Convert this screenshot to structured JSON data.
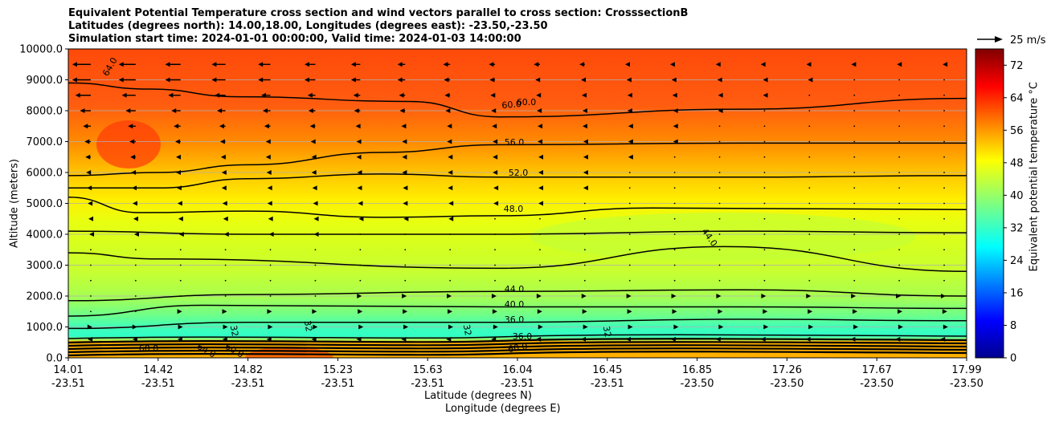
{
  "title": {
    "line1": "Equivalent Potential Temperature cross section and wind vectors parallel to cross section: CrosssectionB",
    "line2": "Latitudes (degrees north): 14.00,18.00, Longitudes (degrees east): -23.50,-23.50",
    "line3": "Simulation start time: 2024-01-01 00:00:00, Valid time: 2024-01-03 14:00:00"
  },
  "axis": {
    "ylabel": "Altitude (meters)",
    "xlabel_lat": "Latitude (degrees N)",
    "xlabel_lon": "Longitude (degrees E)",
    "colorbar_label": "Equivalent potential temperature $^\\circ$C",
    "colorbar_label_display": "Equivalent potential temperature °C",
    "quiver_key": "25 m/s"
  },
  "chart_data": {
    "type": "contour",
    "ylim": [
      0,
      10000
    ],
    "yticks": [
      "0.0",
      "1000.0",
      "2000.0",
      "3000.0",
      "4000.0",
      "5000.0",
      "6000.0",
      "7000.0",
      "8000.0",
      "9000.0",
      "10000.0"
    ],
    "ytick_values": [
      0,
      1000,
      2000,
      3000,
      4000,
      5000,
      6000,
      7000,
      8000,
      9000,
      10000
    ],
    "xticks": [
      {
        "lat": "14.01",
        "lon": "-23.51"
      },
      {
        "lat": "14.42",
        "lon": "-23.51"
      },
      {
        "lat": "14.82",
        "lon": "-23.51"
      },
      {
        "lat": "15.23",
        "lon": "-23.51"
      },
      {
        "lat": "15.63",
        "lon": "-23.51"
      },
      {
        "lat": "16.04",
        "lon": "-23.51"
      },
      {
        "lat": "16.45",
        "lon": "-23.51"
      },
      {
        "lat": "16.85",
        "lon": "-23.50"
      },
      {
        "lat": "17.26",
        "lon": "-23.50"
      },
      {
        "lat": "17.67",
        "lon": "-23.50"
      },
      {
        "lat": "17.99",
        "lon": "-23.50"
      }
    ],
    "colorbar": {
      "min": 0,
      "max": 76,
      "ticks": [
        0,
        8,
        16,
        24,
        32,
        40,
        48,
        56,
        64,
        72
      ]
    },
    "contour_labels": [
      "64.0",
      "60.0",
      "60.0",
      "56.0",
      "52.0",
      "48.0",
      "44.0",
      "44.0",
      "40.0",
      "36.0",
      "32",
      "32",
      "32",
      "32",
      "36.0",
      "60.0",
      "64.0",
      "60.0",
      "60.0"
    ],
    "contour_lines": [
      {
        "level": 60,
        "points": [
          [
            0,
            8900
          ],
          [
            0.09,
            8700
          ],
          [
            0.19,
            8450
          ],
          [
            0.38,
            8300
          ],
          [
            0.48,
            7800
          ],
          [
            0.75,
            8050
          ],
          [
            1.0,
            8400
          ]
        ]
      },
      {
        "level": 56,
        "points": [
          [
            0,
            5900
          ],
          [
            0.1,
            6000
          ],
          [
            0.2,
            6250
          ],
          [
            0.35,
            6650
          ],
          [
            0.48,
            6900
          ],
          [
            0.75,
            6950
          ],
          [
            1.0,
            6950
          ]
        ]
      },
      {
        "level": 52,
        "points": [
          [
            0,
            5500
          ],
          [
            0.1,
            5500
          ],
          [
            0.2,
            5800
          ],
          [
            0.35,
            5950
          ],
          [
            0.48,
            5850
          ],
          [
            0.75,
            5850
          ],
          [
            1.0,
            5900
          ]
        ]
      },
      {
        "level": 48,
        "points": [
          [
            0,
            5200
          ],
          [
            0.08,
            4700
          ],
          [
            0.2,
            4750
          ],
          [
            0.35,
            4550
          ],
          [
            0.48,
            4600
          ],
          [
            0.65,
            4850
          ],
          [
            1.0,
            4800
          ]
        ]
      },
      {
        "level": 44,
        "points": [
          [
            0,
            4100
          ],
          [
            0.2,
            4000
          ],
          [
            0.48,
            4000
          ],
          [
            0.75,
            4100
          ],
          [
            1.0,
            4050
          ]
        ]
      },
      {
        "level": 44,
        "points": [
          [
            0,
            3400
          ],
          [
            0.1,
            3200
          ],
          [
            0.48,
            2900
          ],
          [
            0.73,
            3600
          ],
          [
            1.0,
            2800
          ]
        ]
      },
      {
        "level": 44,
        "points": [
          [
            0,
            1850
          ],
          [
            0.2,
            2050
          ],
          [
            0.48,
            2150
          ],
          [
            0.75,
            2200
          ],
          [
            1.0,
            2000
          ]
        ]
      },
      {
        "level": 40,
        "points": [
          [
            0,
            1350
          ],
          [
            0.15,
            1700
          ],
          [
            0.48,
            1650
          ],
          [
            0.75,
            1650
          ],
          [
            1.0,
            1600
          ]
        ]
      },
      {
        "level": 36,
        "points": [
          [
            0,
            950
          ],
          [
            0.2,
            1150
          ],
          [
            0.48,
            1150
          ],
          [
            0.75,
            1250
          ],
          [
            1.0,
            1200
          ]
        ]
      }
    ],
    "wind": {
      "units": "m/s",
      "reference_speed": 25,
      "rows": [
        {
          "altitude": 9500,
          "u": [
            -24,
            -22,
            -20,
            -18,
            -16,
            -14,
            -12,
            -10,
            -9,
            -8,
            -8,
            -7,
            -6,
            -6,
            -5,
            -5,
            -4,
            -4,
            -3,
            -2
          ]
        },
        {
          "altitude": 9000,
          "u": [
            -24,
            -22,
            -20,
            -18,
            -16,
            -14,
            -12,
            -10,
            -8,
            -7,
            -6,
            -5,
            -4,
            -4,
            -3,
            -2,
            -2,
            -1,
            -1,
            -1
          ]
        },
        {
          "altitude": 8500,
          "u": [
            -20,
            -18,
            -16,
            -14,
            -12,
            -10,
            -9,
            -8,
            -7,
            -6,
            -5,
            -4,
            -3,
            -3,
            -2,
            -2,
            -1,
            -1,
            -1,
            -1
          ]
        },
        {
          "altitude": 8000,
          "u": [
            -14,
            -13,
            -12,
            -11,
            -10,
            -9,
            -8,
            -7,
            -6,
            -5,
            -4,
            -3,
            -3,
            -2,
            -2,
            -1,
            -1,
            -1,
            -1,
            -1
          ]
        },
        {
          "altitude": 7500,
          "u": [
            -10,
            -10,
            -9,
            -8,
            -8,
            -7,
            -6,
            -5,
            -4,
            -4,
            -3,
            -3,
            -2,
            -2,
            -1,
            -1,
            -1,
            -1,
            -1,
            -1
          ]
        },
        {
          "altitude": 7000,
          "u": [
            -8,
            -8,
            -7,
            -7,
            -6,
            -6,
            -5,
            -4,
            -4,
            -3,
            -3,
            -2,
            -2,
            -2,
            -1,
            -1,
            -1,
            -1,
            -1,
            -1
          ]
        },
        {
          "altitude": 6500,
          "u": [
            -7,
            -7,
            -6,
            -6,
            -6,
            -5,
            -5,
            -4,
            -3,
            -3,
            -2,
            -2,
            -2,
            -1,
            -1,
            -1,
            -1,
            -1,
            -1,
            -1
          ]
        },
        {
          "altitude": 6000,
          "u": [
            -6,
            -6,
            -6,
            -5,
            -5,
            -5,
            -4,
            -4,
            -3,
            -3,
            -2,
            -2,
            -1,
            -1,
            -1,
            -1,
            -1,
            -1,
            -1,
            -1
          ]
        },
        {
          "altitude": 5500,
          "u": [
            -5,
            -5,
            -5,
            -5,
            -4,
            -4,
            -4,
            -3,
            -3,
            -2,
            -2,
            -2,
            -1,
            -1,
            -1,
            -1,
            -1,
            -1,
            -1,
            -1
          ]
        },
        {
          "altitude": 5000,
          "u": [
            -4,
            -4,
            -4,
            -4,
            -4,
            -3,
            -3,
            -3,
            -2,
            -2,
            -2,
            -1,
            -1,
            -1,
            -1,
            -1,
            -1,
            -1,
            -1,
            -1
          ]
        },
        {
          "altitude": 4500,
          "u": [
            -3,
            -3,
            -3,
            -3,
            -3,
            -2,
            -2,
            -2,
            -2,
            -1,
            -1,
            -1,
            -1,
            -1,
            -1,
            -1,
            -1,
            -1,
            -1,
            -1
          ]
        },
        {
          "altitude": 4000,
          "u": [
            -2,
            -2,
            -2,
            -2,
            -2,
            -2,
            -1,
            -1,
            -1,
            -1,
            -1,
            -1,
            -1,
            -1,
            -1,
            -1,
            -1,
            -1,
            -1,
            -1
          ]
        },
        {
          "altitude": 3500,
          "u": [
            -1,
            -1,
            -1,
            -1,
            -1,
            -1,
            -1,
            -1,
            -1,
            -1,
            -1,
            -1,
            -1,
            -1,
            -1,
            -1,
            -1,
            -1,
            -1,
            -1
          ]
        },
        {
          "altitude": 3000,
          "u": [
            -1,
            -1,
            -1,
            -1,
            -1,
            -1,
            -1,
            -1,
            -1,
            -1,
            -1,
            -1,
            -1,
            -1,
            -1,
            -1,
            -1,
            -1,
            -1,
            -1
          ]
        },
        {
          "altitude": 2500,
          "u": [
            1,
            1,
            1,
            1,
            1,
            1,
            1,
            1,
            1,
            1,
            1,
            1,
            1,
            1,
            1,
            1,
            1,
            1,
            1,
            1
          ]
        },
        {
          "altitude": 2000,
          "u": [
            1,
            1,
            1,
            1,
            1,
            1,
            2,
            2,
            2,
            2,
            2,
            2,
            2,
            2,
            2,
            2,
            2,
            2,
            2,
            2
          ]
        },
        {
          "altitude": 1500,
          "u": [
            1,
            1,
            2,
            2,
            2,
            2,
            3,
            3,
            3,
            3,
            3,
            3,
            3,
            3,
            4,
            4,
            4,
            4,
            4,
            4
          ]
        },
        {
          "altitude": 1000,
          "u": [
            2,
            2,
            3,
            3,
            3,
            3,
            4,
            4,
            4,
            4,
            4,
            4,
            4,
            5,
            5,
            5,
            5,
            5,
            5,
            5
          ]
        },
        {
          "altitude": 600,
          "u": [
            -4,
            -4,
            -4,
            -4,
            -5,
            -5,
            -5,
            -5,
            -5,
            -5,
            -5,
            -5,
            -5,
            -5,
            -5,
            -5,
            -5,
            -5,
            -5,
            -5
          ]
        }
      ]
    }
  }
}
